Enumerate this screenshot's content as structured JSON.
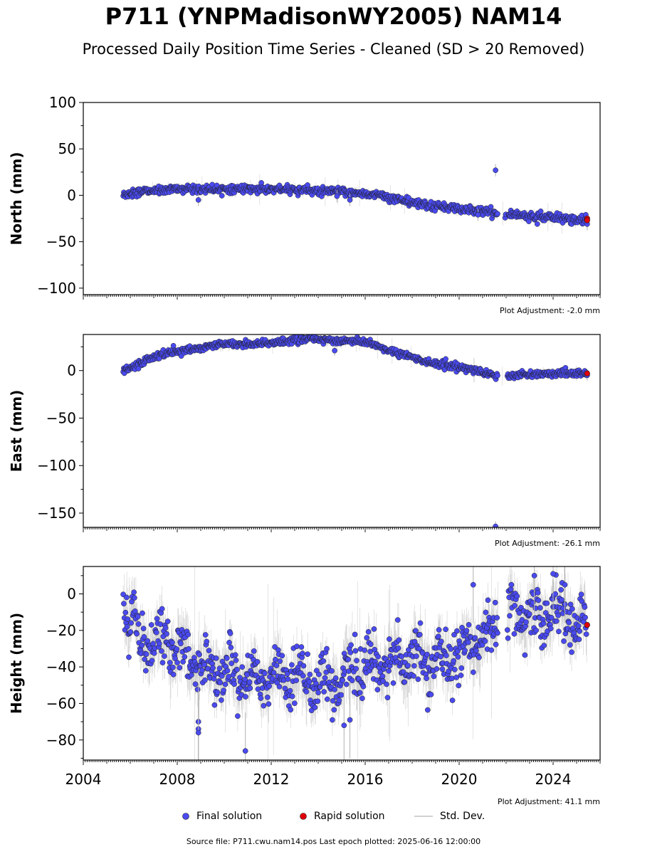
{
  "title": "P711 (YNPMadisonWY2005) NAM14",
  "subtitle": "Processed Daily Position Time Series - Cleaned (SD > 20 Removed)",
  "colors": {
    "final": "#4a4af0",
    "rapid": "#e0000a",
    "stddev": "#c0c0c0",
    "edge": "#202020"
  },
  "legend": {
    "final_label": "Final solution",
    "rapid_label": "Rapid solution",
    "std_label": "Std. Dev."
  },
  "source_text": "Source file: P711.cwu.nam14.pos  Last epoch plotted: 2025-06-16 12:00:00",
  "chart_data": [
    {
      "type": "scatter",
      "ylabel": "North (mm)",
      "adjustment": "Plot Adjustment: -2.0 mm",
      "xlim": [
        2004,
        2026
      ],
      "ylim": [
        -107,
        100
      ],
      "yticks": [
        -100,
        -50,
        0,
        50,
        100
      ],
      "ytick_labels": [
        "−100",
        "−50",
        "0",
        "50",
        "100"
      ],
      "xticks": [
        2004,
        2008,
        2012,
        2016,
        2020,
        2024
      ],
      "xtick_labels": [
        "2004",
        "2008",
        "2012",
        "2016",
        "2020",
        "2024"
      ],
      "show_xtick_labels": false,
      "trend": [
        [
          2005.7,
          0
        ],
        [
          2006.5,
          4
        ],
        [
          2008.0,
          7
        ],
        [
          2010.0,
          7
        ],
        [
          2012.0,
          6
        ],
        [
          2013.5,
          6
        ],
        [
          2014.0,
          4
        ],
        [
          2015.0,
          4
        ],
        [
          2016.0,
          2
        ],
        [
          2017.0,
          -2
        ],
        [
          2018.0,
          -8
        ],
        [
          2019.0,
          -12
        ],
        [
          2020.0,
          -15
        ],
        [
          2021.0,
          -17
        ],
        [
          2021.6,
          -19
        ],
        [
          2022.1,
          -20
        ],
        [
          2023.0,
          -22
        ],
        [
          2024.0,
          -24
        ],
        [
          2025.4,
          -27
        ]
      ],
      "gaps": [
        [
          2021.65,
          2021.95
        ],
        [
          2022.0,
          2022.1
        ]
      ],
      "noise": 2.2,
      "outliers": [
        [
          2008.9,
          -5
        ],
        [
          2014.8,
          -1
        ],
        [
          2015.35,
          -5
        ],
        [
          2020.8,
          -21
        ],
        [
          2021.55,
          27
        ],
        [
          2025.45,
          -31
        ]
      ],
      "rapid": [
        [
          2025.45,
          -25
        ],
        [
          2025.45,
          -27
        ]
      ]
    },
    {
      "type": "scatter",
      "ylabel": "East (mm)",
      "adjustment": "Plot Adjustment: -26.1 mm",
      "xlim": [
        2004,
        2026
      ],
      "ylim": [
        -165,
        38
      ],
      "yticks": [
        -150,
        -100,
        -50,
        0
      ],
      "ytick_labels": [
        "−150",
        "−100",
        "−50",
        "0"
      ],
      "xticks": [
        2004,
        2008,
        2012,
        2016,
        2020,
        2024
      ],
      "xtick_labels": [
        "2004",
        "2008",
        "2012",
        "2016",
        "2020",
        "2024"
      ],
      "show_xtick_labels": false,
      "trend": [
        [
          2005.7,
          0
        ],
        [
          2006.3,
          6
        ],
        [
          2006.8,
          13
        ],
        [
          2007.5,
          19
        ],
        [
          2008.5,
          22
        ],
        [
          2009.5,
          26
        ],
        [
          2010.5,
          28
        ],
        [
          2012.0,
          29
        ],
        [
          2013.0,
          32
        ],
        [
          2013.8,
          34
        ],
        [
          2014.5,
          31
        ],
        [
          2015.5,
          31
        ],
        [
          2016.0,
          30
        ],
        [
          2016.7,
          24
        ],
        [
          2017.5,
          18
        ],
        [
          2018.5,
          10
        ],
        [
          2019.5,
          5
        ],
        [
          2020.5,
          1
        ],
        [
          2021.3,
          -3
        ],
        [
          2021.6,
          -6
        ],
        [
          2022.1,
          -6
        ],
        [
          2022.6,
          -4
        ],
        [
          2023.5,
          -3
        ],
        [
          2025.4,
          -3
        ]
      ],
      "gaps": [
        [
          2021.65,
          2022.05
        ]
      ],
      "noise": 1.8,
      "outliers": [
        [
          2014.7,
          21
        ],
        [
          2021.55,
          -164
        ],
        [
          2025.45,
          -5
        ]
      ],
      "rapid": [
        [
          2025.45,
          -3
        ]
      ]
    },
    {
      "type": "scatter",
      "ylabel": "Height (mm)",
      "adjustment": "Plot Adjustment: 41.1 mm",
      "xlim": [
        2004,
        2026
      ],
      "ylim": [
        -91,
        15
      ],
      "yticks": [
        -80,
        -60,
        -40,
        -20,
        0
      ],
      "ytick_labels": [
        "−80",
        "−60",
        "−40",
        "−20",
        "0"
      ],
      "xticks": [
        2004,
        2008,
        2012,
        2016,
        2020,
        2024
      ],
      "xtick_labels": [
        "2004",
        "2008",
        "2012",
        "2016",
        "2020",
        "2024"
      ],
      "show_xtick_labels": true,
      "trend": [
        [
          2005.7,
          -5
        ],
        [
          2006.5,
          -25
        ],
        [
          2008.0,
          -30
        ],
        [
          2009.0,
          -40
        ],
        [
          2010.0,
          -42
        ],
        [
          2011.0,
          -46
        ],
        [
          2012.0,
          -45
        ],
        [
          2013.0,
          -46
        ],
        [
          2014.0,
          -48
        ],
        [
          2015.0,
          -45
        ],
        [
          2016.0,
          -40
        ],
        [
          2017.0,
          -38
        ],
        [
          2018.0,
          -36
        ],
        [
          2019.0,
          -38
        ],
        [
          2020.0,
          -32
        ],
        [
          2021.0,
          -26
        ],
        [
          2021.6,
          -18
        ],
        [
          2022.1,
          -10
        ],
        [
          2023.0,
          -14
        ],
        [
          2024.0,
          -10
        ],
        [
          2025.4,
          -18
        ]
      ],
      "gaps": [
        [
          2021.65,
          2022.05
        ]
      ],
      "noise": 7,
      "outliers": [
        [
          2008.9,
          -70
        ],
        [
          2008.9,
          -74
        ],
        [
          2008.9,
          -76
        ],
        [
          2010.9,
          -86
        ],
        [
          2015.1,
          -72
        ],
        [
          2015.35,
          -69
        ],
        [
          2020.6,
          5
        ],
        [
          2023.2,
          10
        ],
        [
          2024.0,
          11
        ],
        [
          2024.5,
          5
        ]
      ],
      "rapid": [
        [
          2025.45,
          -17
        ]
      ]
    }
  ]
}
